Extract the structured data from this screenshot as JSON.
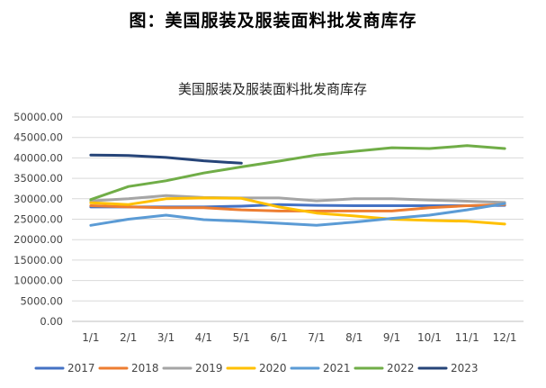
{
  "figure_title": "图：美国服装及服装面料批发商库存",
  "chart_data": {
    "type": "line",
    "title": "美国服装及服装面料批发商库存",
    "xlabel": "",
    "ylabel": "",
    "ylim": [
      0,
      50000
    ],
    "yticks": [
      "0.00",
      "5000.00",
      "10000.00",
      "15000.00",
      "20000.00",
      "25000.00",
      "30000.00",
      "35000.00",
      "40000.00",
      "45000.00",
      "50000.00"
    ],
    "categories": [
      "1/1",
      "2/1",
      "3/1",
      "4/1",
      "5/1",
      "6/1",
      "7/1",
      "8/1",
      "9/1",
      "10/1",
      "11/1",
      "12/1"
    ],
    "grid": true,
    "legend_position": "bottom",
    "series": [
      {
        "name": "2017",
        "color": "#4472C4",
        "values": [
          28000,
          28000,
          28000,
          28000,
          28200,
          28600,
          28400,
          28300,
          28300,
          28300,
          28300,
          28400
        ]
      },
      {
        "name": "2018",
        "color": "#ED7D31",
        "values": [
          28300,
          28000,
          27800,
          27800,
          27300,
          27000,
          27000,
          27000,
          27000,
          27800,
          28300,
          28600
        ]
      },
      {
        "name": "2019",
        "color": "#A5A5A5",
        "values": [
          29500,
          30000,
          30800,
          30300,
          30200,
          30200,
          29500,
          30000,
          30000,
          29700,
          29400,
          29100
        ]
      },
      {
        "name": "2020",
        "color": "#FFC000",
        "values": [
          29000,
          28600,
          30000,
          30200,
          30100,
          28000,
          26500,
          25800,
          25000,
          24700,
          24500,
          23800
        ]
      },
      {
        "name": "2021",
        "color": "#5B9BD5",
        "values": [
          23500,
          25000,
          26000,
          24900,
          24500,
          24000,
          23500,
          24300,
          25200,
          26000,
          27300,
          28800
        ]
      },
      {
        "name": "2022",
        "color": "#70AD47",
        "values": [
          29800,
          33000,
          34400,
          36300,
          37800,
          39200,
          40700,
          41600,
          42500,
          42300,
          43000,
          42300
        ]
      },
      {
        "name": "2023",
        "color": "#264478",
        "values": [
          40700,
          40600,
          40100,
          39300,
          38700,
          null,
          null,
          null,
          null,
          null,
          null,
          null
        ]
      }
    ]
  }
}
